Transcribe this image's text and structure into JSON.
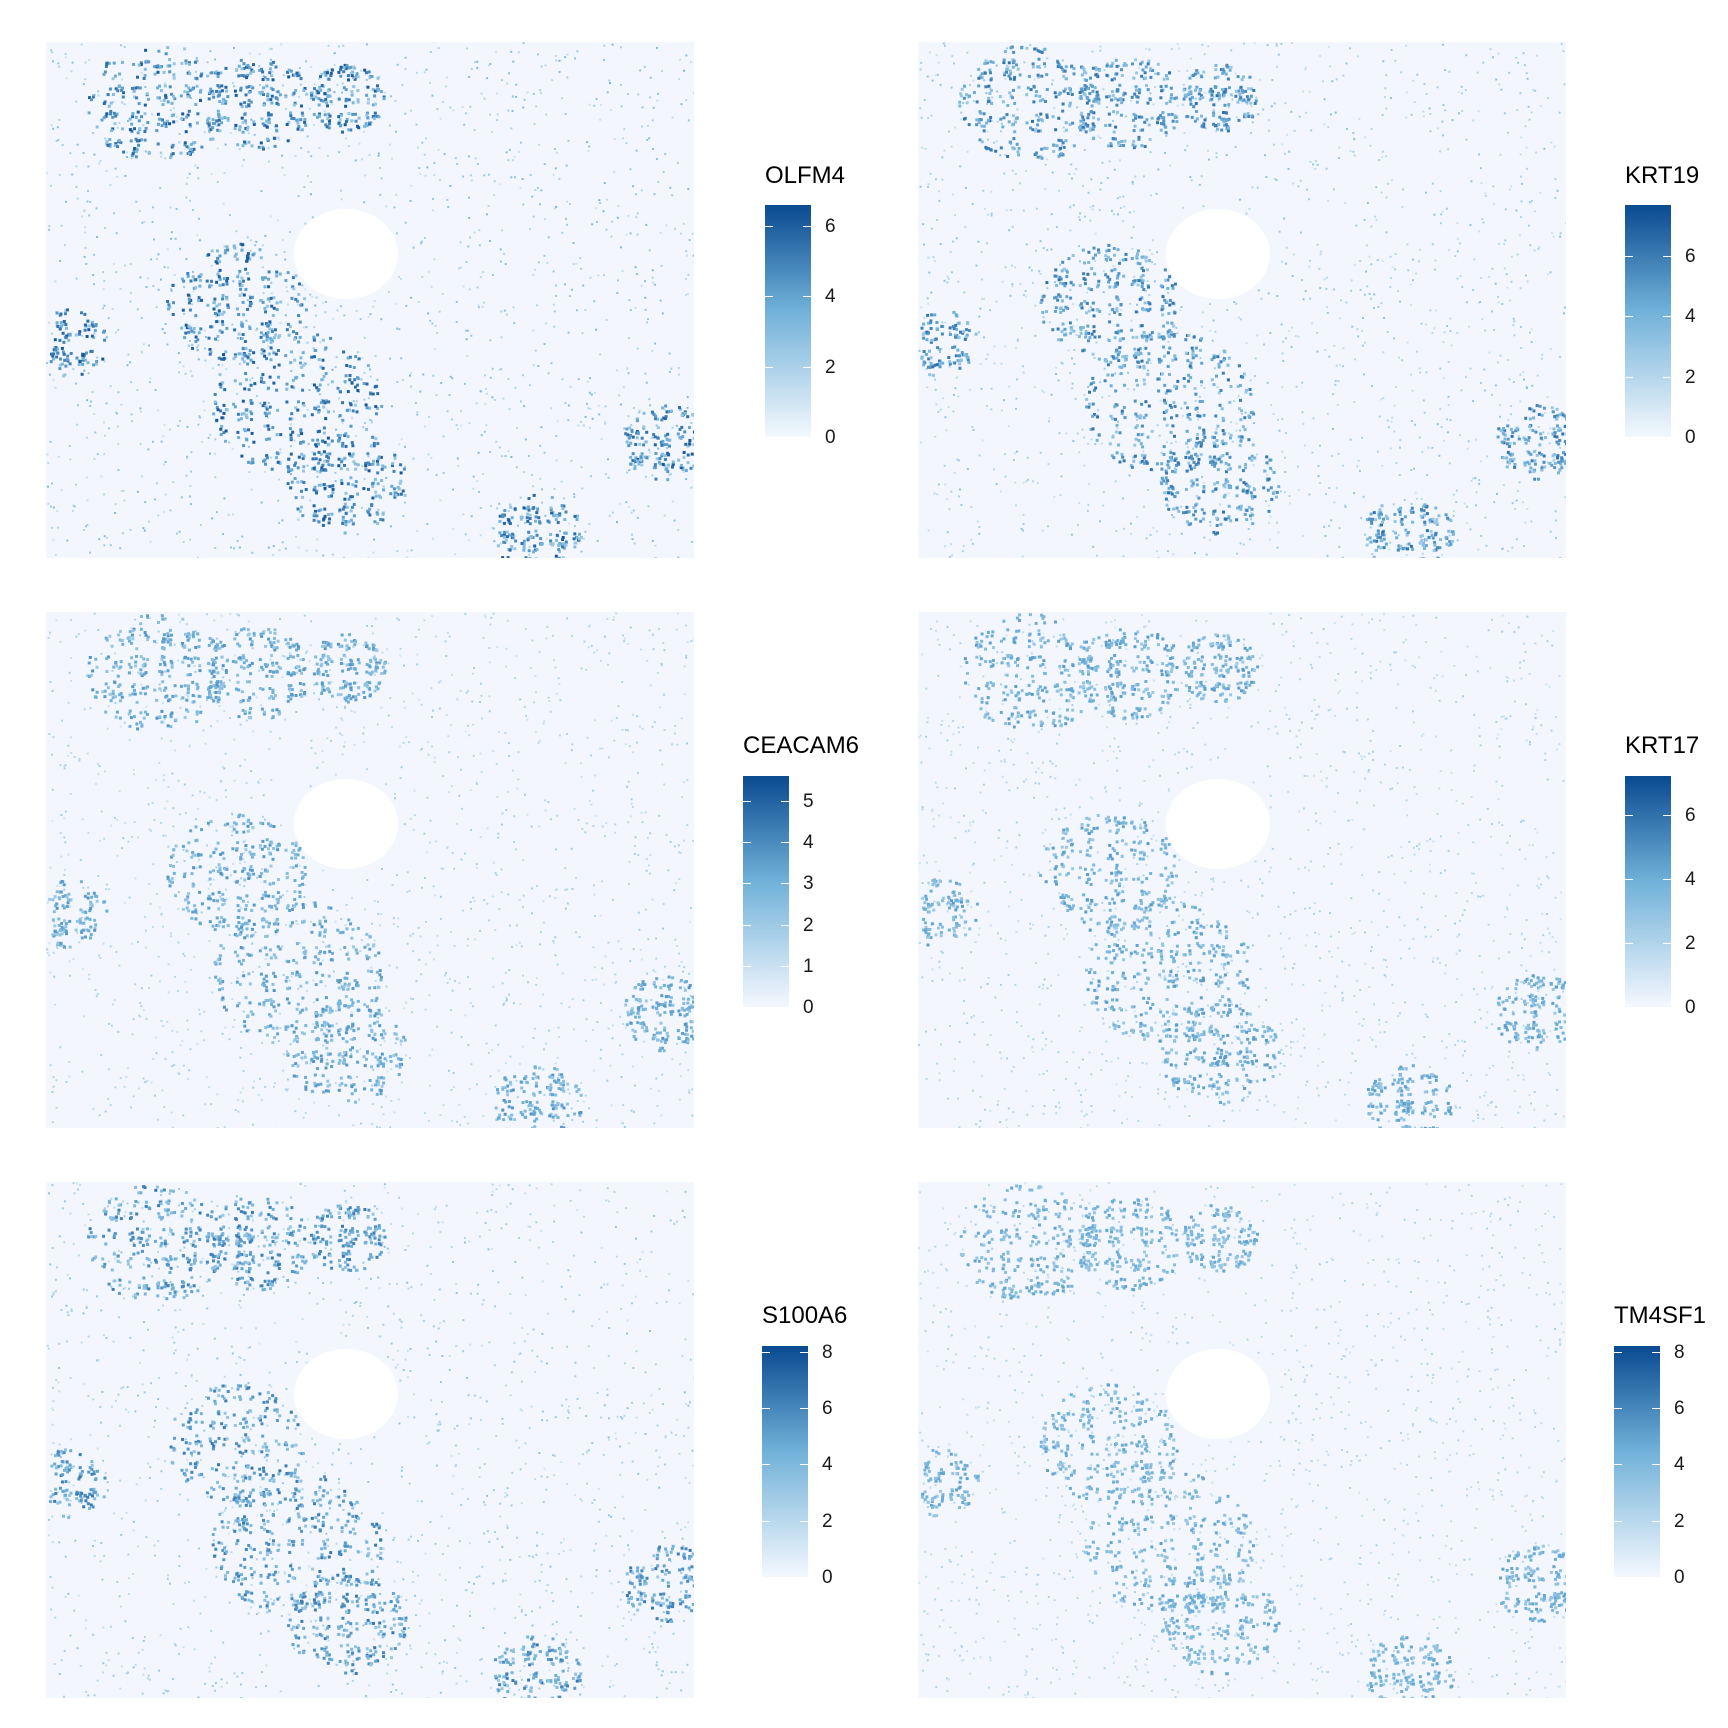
{
  "figure": {
    "colormap": {
      "low": "#f4f8fe",
      "mid": "#6fb0d8",
      "high": "#0a4a90"
    },
    "background": "#ffffff"
  },
  "chart_data": [
    {
      "type": "heatmap",
      "gene": "OLFM4",
      "legend_ticks": [
        0,
        2,
        4,
        6
      ],
      "scale_max": 6.6
    },
    {
      "type": "heatmap",
      "gene": "KRT19",
      "legend_ticks": [
        0,
        2,
        4,
        6
      ],
      "scale_max": 7.7
    },
    {
      "type": "heatmap",
      "gene": "CEACAM6",
      "legend_ticks": [
        0,
        1,
        2,
        3,
        4,
        5
      ],
      "scale_max": 5.6
    },
    {
      "type": "heatmap",
      "gene": "KRT17",
      "legend_ticks": [
        0,
        2,
        4,
        6
      ],
      "scale_max": 7.2
    },
    {
      "type": "heatmap",
      "gene": "S100A6",
      "legend_ticks": [
        0,
        2,
        4,
        6,
        8
      ],
      "scale_max": 8.2
    },
    {
      "type": "heatmap",
      "gene": "TM4SF1",
      "legend_ticks": [
        0,
        2,
        4,
        6,
        8
      ],
      "scale_max": 8.2
    }
  ]
}
